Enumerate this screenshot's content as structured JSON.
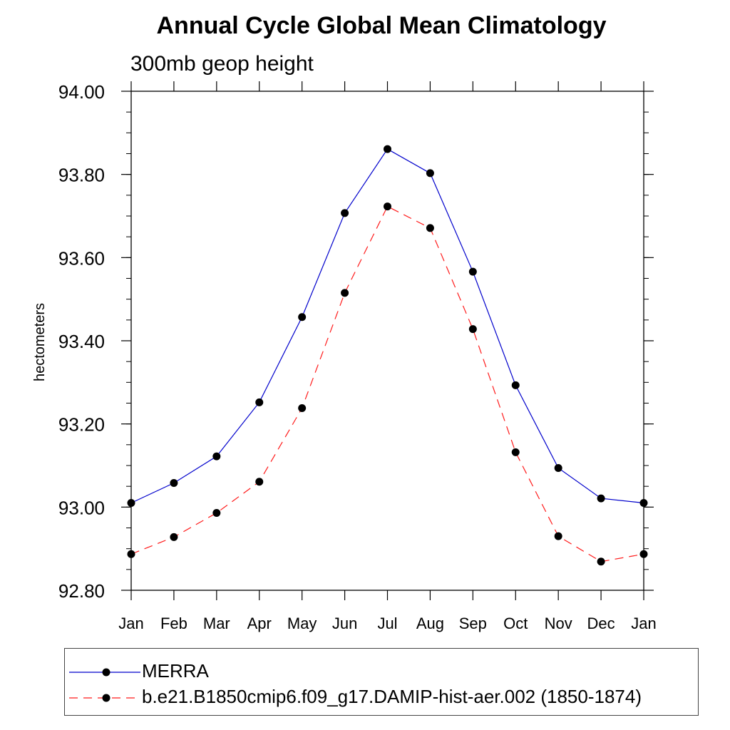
{
  "chart_data": {
    "type": "line",
    "title": "Annual Cycle Global Mean Climatology",
    "subtitle": "300mb geop height",
    "xlabel": "",
    "ylabel": "hectometers",
    "categories": [
      "Jan",
      "Feb",
      "Mar",
      "Apr",
      "May",
      "Jun",
      "Jul",
      "Aug",
      "Sep",
      "Oct",
      "Nov",
      "Dec",
      "Jan"
    ],
    "ylim": [
      92.8,
      94.0
    ],
    "yticks": [
      "92.80",
      "93.00",
      "93.20",
      "93.40",
      "93.60",
      "93.80",
      "94.00"
    ],
    "yminor_step": 0.05,
    "grid": false,
    "legend_position": "bottom",
    "series": [
      {
        "name": "MERRA",
        "color": "#0000cc",
        "dash": "solid",
        "marker": "filled-circle",
        "values": [
          93.01,
          93.058,
          93.122,
          93.252,
          93.457,
          93.707,
          93.861,
          93.803,
          93.566,
          93.293,
          93.094,
          93.021,
          93.01
        ]
      },
      {
        "name": "b.e21.B1850cmip6.f09_g17.DAMIP-hist-aer.002 (1850-1874)",
        "color": "#ff1a1a",
        "dash": "dashed",
        "marker": "filled-circle",
        "values": [
          92.887,
          92.928,
          92.986,
          93.061,
          93.238,
          93.515,
          93.723,
          93.671,
          93.428,
          93.132,
          92.93,
          92.869,
          92.887
        ]
      }
    ]
  }
}
